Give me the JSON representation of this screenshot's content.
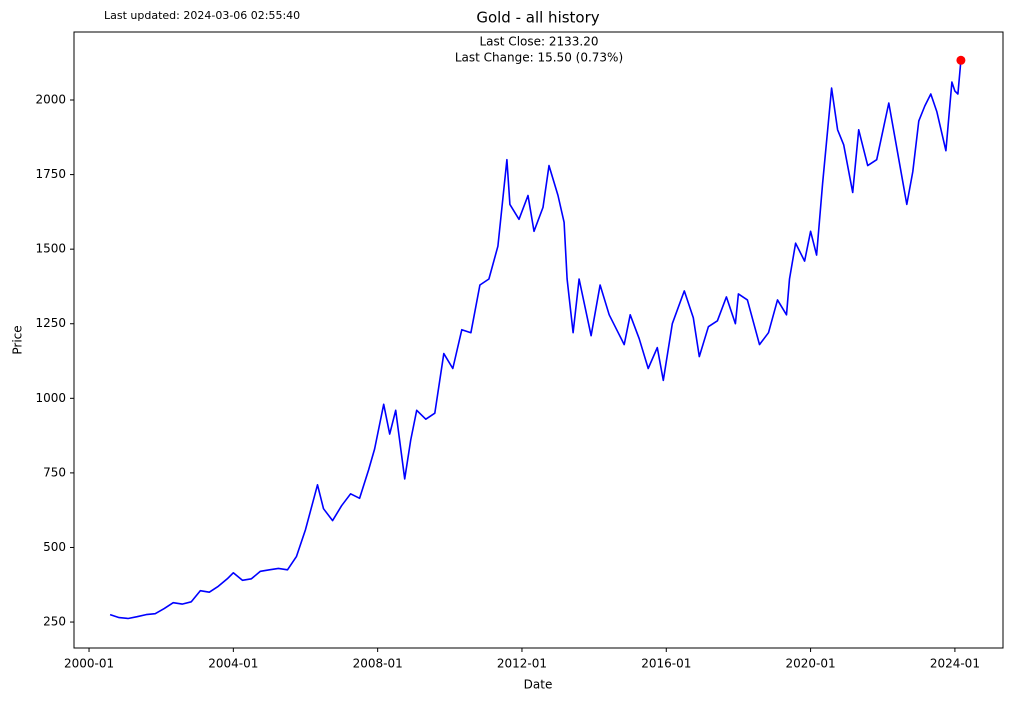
{
  "chart_data": {
    "type": "line",
    "title": "Gold - all history",
    "subtitle": "Last updated: 2024-03-06 02:55:40",
    "annotations": [
      "Last Close: 2133.20",
      "Last Change: 15.50 (0.73%)"
    ],
    "x_label": "Date",
    "y_label": "Price",
    "color": "#0000ff",
    "last_marker_color": "#ff0000",
    "x": [
      "2000-08",
      "2000-11",
      "2001-02",
      "2001-05",
      "2001-08",
      "2001-11",
      "2002-02",
      "2002-05",
      "2002-08",
      "2002-11",
      "2003-02",
      "2003-05",
      "2003-08",
      "2003-11",
      "2004-01",
      "2004-04",
      "2004-07",
      "2004-10",
      "2005-01",
      "2005-04",
      "2005-07",
      "2005-10",
      "2006-01",
      "2006-05",
      "2006-07",
      "2006-10",
      "2007-01",
      "2007-04",
      "2007-07",
      "2007-10",
      "2007-12",
      "2008-03",
      "2008-05",
      "2008-07",
      "2008-10",
      "2008-12",
      "2009-02",
      "2009-05",
      "2009-08",
      "2009-11",
      "2010-02",
      "2010-05",
      "2010-08",
      "2010-11",
      "2011-02",
      "2011-05",
      "2011-08",
      "2011-09",
      "2011-12",
      "2012-03",
      "2012-05",
      "2012-08",
      "2012-10",
      "2013-01",
      "2013-03",
      "2013-04",
      "2013-06",
      "2013-08",
      "2013-12",
      "2014-03",
      "2014-06",
      "2014-09",
      "2014-11",
      "2015-01",
      "2015-04",
      "2015-07",
      "2015-10",
      "2015-12",
      "2016-03",
      "2016-07",
      "2016-10",
      "2016-12",
      "2017-03",
      "2017-06",
      "2017-09",
      "2017-12",
      "2018-01",
      "2018-04",
      "2018-08",
      "2018-11",
      "2019-02",
      "2019-05",
      "2019-06",
      "2019-08",
      "2019-11",
      "2020-01",
      "2020-03",
      "2020-05",
      "2020-08",
      "2020-10",
      "2020-12",
      "2021-03",
      "2021-05",
      "2021-08",
      "2021-11",
      "2022-03",
      "2022-06",
      "2022-09",
      "2022-11",
      "2023-01",
      "2023-03",
      "2023-05",
      "2023-07",
      "2023-10",
      "2023-12",
      "2024-01",
      "2024-02",
      "2024-03"
    ],
    "values": [
      275,
      265,
      262,
      268,
      275,
      278,
      295,
      315,
      310,
      318,
      355,
      350,
      370,
      395,
      415,
      390,
      395,
      420,
      425,
      430,
      425,
      470,
      560,
      710,
      630,
      590,
      640,
      680,
      665,
      760,
      830,
      980,
      880,
      960,
      730,
      860,
      960,
      930,
      950,
      1150,
      1100,
      1230,
      1220,
      1380,
      1400,
      1510,
      1800,
      1650,
      1600,
      1680,
      1560,
      1640,
      1780,
      1680,
      1590,
      1400,
      1220,
      1400,
      1210,
      1380,
      1280,
      1220,
      1180,
      1280,
      1200,
      1100,
      1170,
      1060,
      1250,
      1360,
      1270,
      1140,
      1240,
      1260,
      1340,
      1250,
      1350,
      1330,
      1180,
      1220,
      1330,
      1280,
      1400,
      1520,
      1460,
      1560,
      1480,
      1720,
      2040,
      1900,
      1850,
      1690,
      1900,
      1780,
      1800,
      1990,
      1820,
      1650,
      1760,
      1930,
      1980,
      2020,
      1960,
      1830,
      2060,
      2030,
      2020,
      2133.2
    ],
    "xlim": [
      "1999-08",
      "2025-05"
    ],
    "xticks": [
      "2000-01",
      "2004-01",
      "2008-01",
      "2012-01",
      "2016-01",
      "2020-01",
      "2024-01"
    ],
    "ylim": [
      163,
      2228
    ],
    "yticks": [
      250,
      500,
      750,
      1000,
      1250,
      1500,
      1750,
      2000
    ],
    "grid": false
  }
}
